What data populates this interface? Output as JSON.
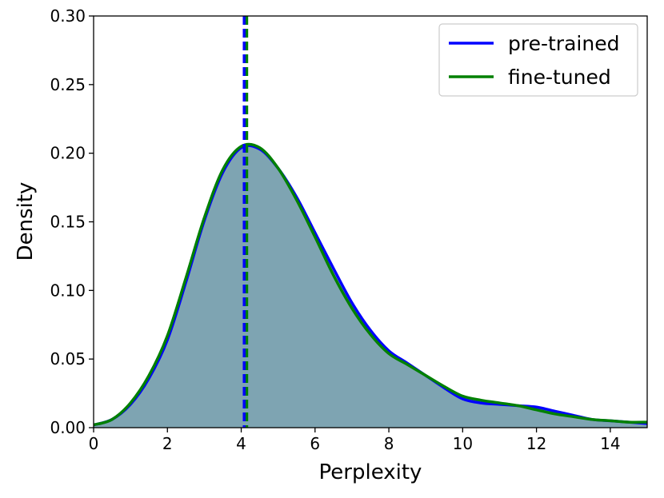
{
  "chart_data": {
    "type": "area",
    "xlabel": "Perplexity",
    "ylabel": "Density",
    "xlim": [
      0,
      15
    ],
    "ylim": [
      0,
      0.3
    ],
    "x_ticks": [
      0,
      2,
      4,
      6,
      8,
      10,
      12,
      14
    ],
    "x_tick_labels": [
      "0",
      "2",
      "4",
      "6",
      "8",
      "10",
      "12",
      "14"
    ],
    "y_ticks": [
      0,
      0.05,
      0.1,
      0.15,
      0.2,
      0.25,
      0.3
    ],
    "y_tick_labels": [
      "0.00",
      "0.05",
      "0.10",
      "0.15",
      "0.20",
      "0.25",
      "0.30"
    ],
    "legend_position": "top-right",
    "fill_color": "#7ea4b2",
    "series": [
      {
        "name": "pre-trained",
        "color": "#0000ff",
        "median": 4.08,
        "x": [
          0,
          0.5,
          1,
          1.5,
          2,
          2.5,
          3,
          3.5,
          4,
          4.5,
          5,
          5.5,
          6,
          6.5,
          7,
          7.5,
          8,
          8.5,
          9,
          9.5,
          10,
          10.5,
          11,
          11.5,
          12,
          12.5,
          13,
          13.5,
          14,
          14.5,
          15
        ],
        "y": [
          0.002,
          0.006,
          0.017,
          0.036,
          0.064,
          0.106,
          0.151,
          0.186,
          0.204,
          0.203,
          0.189,
          0.168,
          0.142,
          0.116,
          0.091,
          0.071,
          0.056,
          0.047,
          0.038,
          0.029,
          0.021,
          0.018,
          0.017,
          0.016,
          0.015,
          0.012,
          0.009,
          0.006,
          0.005,
          0.004,
          0.003
        ]
      },
      {
        "name": "fine-tuned",
        "color": "#008000",
        "median": 4.15,
        "x": [
          0,
          0.5,
          1,
          1.5,
          2,
          2.5,
          3,
          3.5,
          4,
          4.5,
          5,
          5.5,
          6,
          6.5,
          7,
          7.5,
          8,
          8.5,
          9,
          9.5,
          10,
          10.5,
          11,
          11.5,
          12,
          12.5,
          13,
          13.5,
          14,
          14.5,
          15
        ],
        "y": [
          0.002,
          0.006,
          0.018,
          0.038,
          0.067,
          0.109,
          0.153,
          0.188,
          0.205,
          0.204,
          0.189,
          0.166,
          0.139,
          0.111,
          0.087,
          0.068,
          0.054,
          0.046,
          0.038,
          0.03,
          0.023,
          0.02,
          0.018,
          0.016,
          0.013,
          0.01,
          0.008,
          0.006,
          0.005,
          0.004,
          0.004
        ]
      }
    ]
  }
}
